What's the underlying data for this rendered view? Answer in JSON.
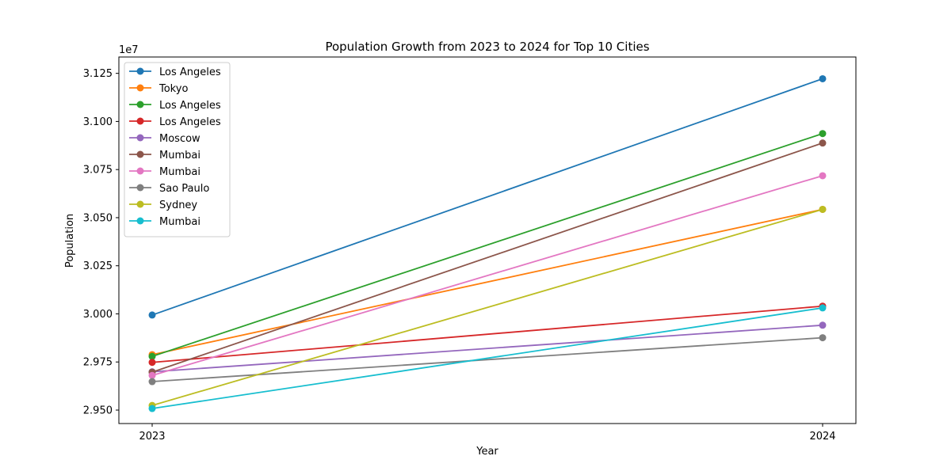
{
  "chart_data": {
    "type": "line",
    "title": "Population Growth from 2023 to 2024 for Top 10 Cities",
    "xlabel": "Year",
    "ylabel": "Population",
    "y_offset_label": "1e7",
    "x": [
      "2023",
      "2024"
    ],
    "ylim": [
      29430000,
      31335000
    ],
    "y_ticks": [
      29500000,
      29750000,
      30000000,
      30250000,
      30500000,
      30750000,
      31000000,
      31250000
    ],
    "y_tick_labels": [
      "2.950",
      "2.975",
      "3.000",
      "3.025",
      "3.050",
      "3.075",
      "3.100",
      "3.125"
    ],
    "grid": false,
    "legend_position": "top-left",
    "series": [
      {
        "name": "Los Angeles",
        "color": "#1f77b4",
        "values": [
          29994000,
          31222000
        ]
      },
      {
        "name": "Tokyo",
        "color": "#ff7f0e",
        "values": [
          29788000,
          30543000
        ]
      },
      {
        "name": "Los Angeles",
        "color": "#2ca02c",
        "values": [
          29779000,
          30937000
        ]
      },
      {
        "name": "Los Angeles",
        "color": "#d62728",
        "values": [
          29748000,
          30040000
        ]
      },
      {
        "name": "Moscow",
        "color": "#9467bd",
        "values": [
          29699000,
          29941000
        ]
      },
      {
        "name": "Mumbai",
        "color": "#8c564b",
        "values": [
          29697000,
          30888000
        ]
      },
      {
        "name": "Mumbai",
        "color": "#e377c2",
        "values": [
          29680000,
          30718000
        ]
      },
      {
        "name": "Sao Paulo",
        "color": "#7f7f7f",
        "values": [
          29648000,
          29876000
        ]
      },
      {
        "name": "Sydney",
        "color": "#bcbd22",
        "values": [
          29524000,
          30543000
        ]
      },
      {
        "name": "Mumbai",
        "color": "#17becf",
        "values": [
          29508000,
          30031000
        ]
      }
    ]
  }
}
